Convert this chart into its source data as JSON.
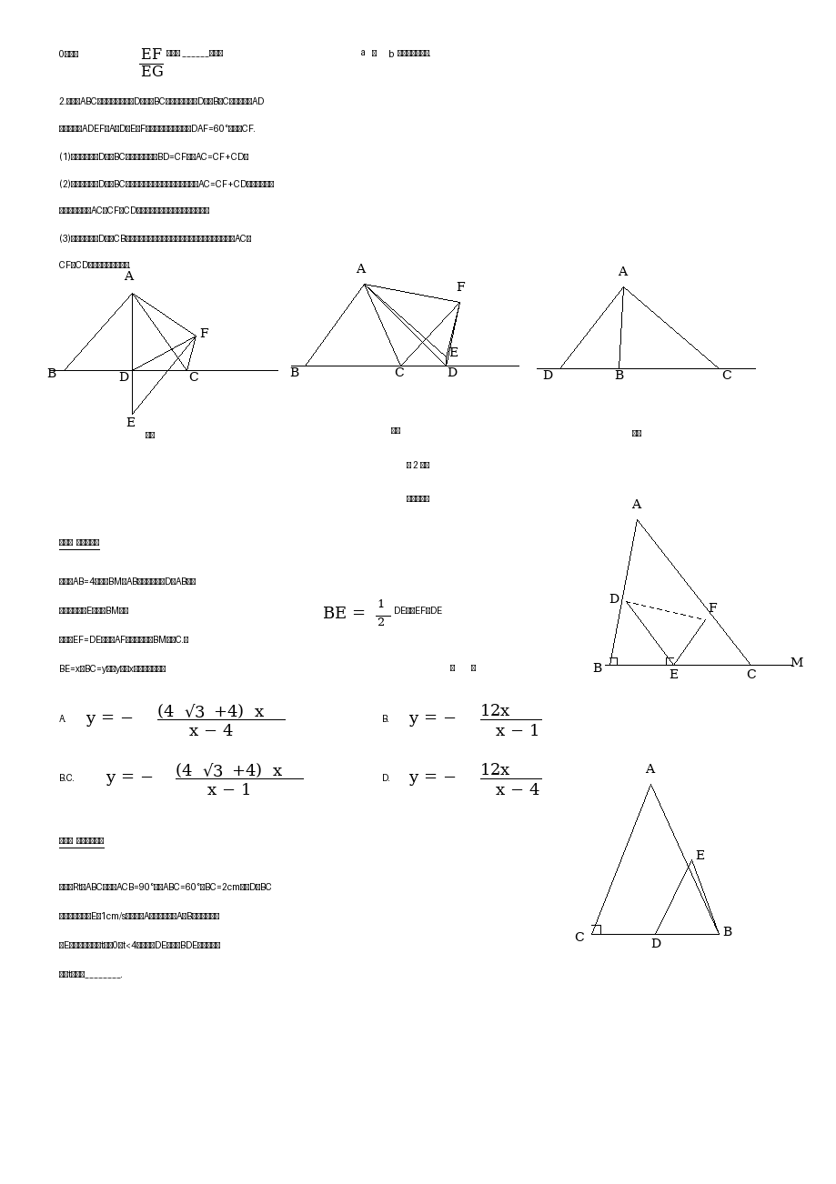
{
  "bg_color": "#ffffff",
  "page_width": 9.2,
  "page_height": 13.02,
  "dpi": 100
}
